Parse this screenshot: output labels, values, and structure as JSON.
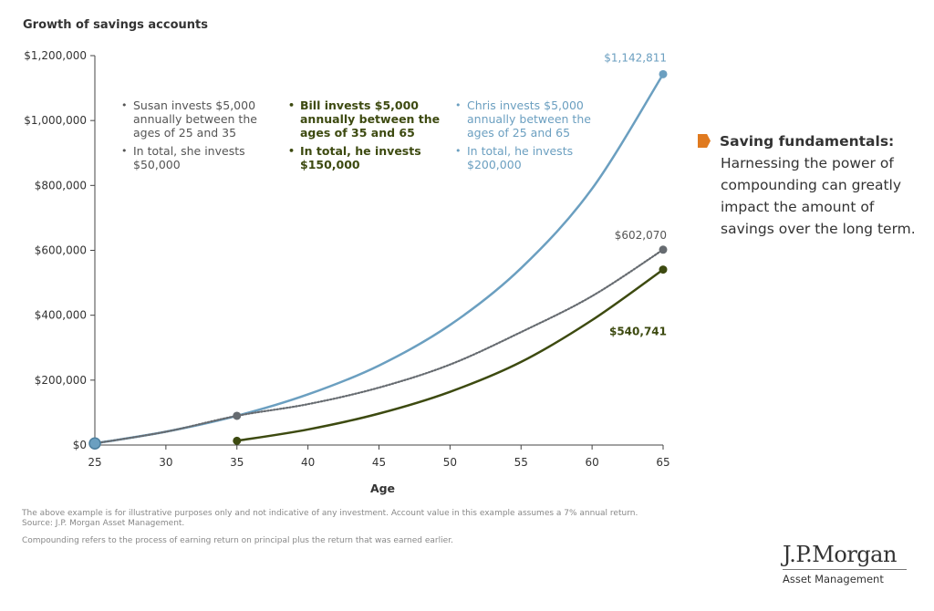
{
  "chart_data": {
    "type": "line",
    "title": "Growth of savings accounts",
    "xlabel": "Age",
    "ylabel": "",
    "xlim": [
      25,
      65
    ],
    "ylim": [
      0,
      1200000
    ],
    "x_ticks": [
      "25",
      "30",
      "35",
      "40",
      "45",
      "50",
      "55",
      "60",
      "65"
    ],
    "y_ticks": [
      "$0",
      "$200,000",
      "$400,000",
      "$600,000",
      "$800,000",
      "$1,000,000",
      "$1,200,000"
    ],
    "series": [
      {
        "name": "",
        "color": "#6b9fc0",
        "style": "solid",
        "x": [
          25,
          30,
          35,
          40,
          45,
          50,
          55,
          60,
          65
        ],
        "y": [
          5000,
          41000,
          90000,
          156000,
          245000,
          370000,
          545000,
          790000,
          1142811
        ]
      },
      {
        "name": "",
        "color": "#666b70",
        "style": "dotted",
        "x": [
          25,
          30,
          35,
          40,
          45,
          50,
          55,
          60,
          65
        ],
        "y": [
          5000,
          41000,
          90000,
          126000,
          177000,
          248000,
          348000,
          459000,
          602070
        ]
      },
      {
        "name": "",
        "color": "#3d4a10",
        "style": "solid",
        "x": [
          35,
          40,
          45,
          50,
          55,
          60,
          65
        ],
        "y": [
          13000,
          48000,
          97000,
          164000,
          256000,
          385000,
          540741
        ]
      }
    ],
    "data_labels": [
      {
        "text": "$1,142,811",
        "x": 65,
        "y": 1142811,
        "color": "#6b9fc0"
      },
      {
        "text": "$602,070",
        "x": 65,
        "y": 602070,
        "color": "#555555"
      },
      {
        "text": "$540,741",
        "x": 65,
        "y": 540741,
        "color": "#3d4a10"
      }
    ],
    "annotations": [
      {
        "id": "susan",
        "color": "#555555",
        "lines": [
          "Susan invests $5,000 annually between the ages of 25 and 35",
          "In total, she invests $50,000"
        ]
      },
      {
        "id": "bill",
        "color": "#3d4a10",
        "lines": [
          "Bill invests $5,000 annually between the ages of 35 and 65",
          "In total, he invests $150,000"
        ]
      },
      {
        "id": "chris",
        "color": "#6b9fc0",
        "lines": [
          "Chris invests $5,000 annually between the ages of 25 and 65",
          "In total, he invests $200,000"
        ]
      }
    ]
  },
  "side_note": {
    "title": "Saving fundamentals:",
    "body": "Harnessing the power of compounding can greatly impact the amount of savings over the long term.",
    "icon_color": "#e07a1f"
  },
  "footnotes": {
    "line1": "The above example is for illustrative purposes only and not indicative of any investment. Account value in this example assumes a 7% annual return.",
    "line2": "Source: J.P. Morgan Asset Management.",
    "line3": "Compounding refers to the process of earning return on principal plus the return that was earned earlier."
  },
  "brand": {
    "name": "J.P.Morgan",
    "sub": "Asset Management"
  }
}
